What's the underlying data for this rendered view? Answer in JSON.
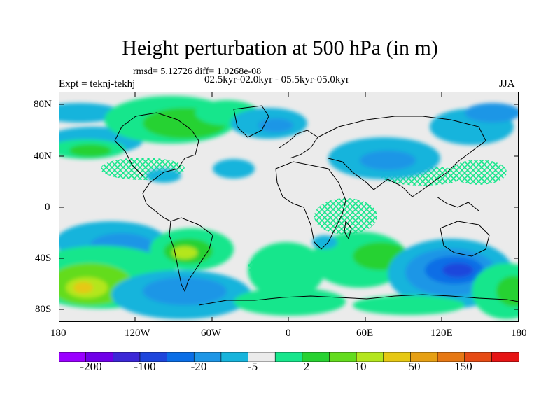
{
  "title": "Height perturbation at 500 hPa (in m)",
  "stats": "rmsd= 5.12726 diff= 1.0268e-08",
  "period": "02.5kyr-02.0kyr - 05.5kyr-05.0kyr",
  "expt": "Expt = teknj-tekhj",
  "season": "JJA",
  "lat_ticks": [
    "80N",
    "40N",
    "0",
    "40S",
    "80S"
  ],
  "lon_ticks": [
    "180",
    "120W",
    "60W",
    "0",
    "60E",
    "120E",
    "180"
  ],
  "colorbar": {
    "labels": [
      "-200",
      "-100",
      "-20",
      "-5",
      "2",
      "10",
      "50",
      "150"
    ],
    "colors": [
      "#9a00ff",
      "#7000e8",
      "#3c28d6",
      "#1e46dc",
      "#0a6ee6",
      "#1e96e6",
      "#17b4dc",
      "#ebebeb",
      "#17e68c",
      "#28d232",
      "#64dc1e",
      "#b4e61e",
      "#e6c814",
      "#e6a014",
      "#e67814",
      "#e64b14",
      "#e61414"
    ]
  },
  "chart_data": {
    "type": "heatmap",
    "title": "Height perturbation at 500 hPa (in m)",
    "x_range": [
      -180,
      180
    ],
    "y_range": [
      -90,
      90
    ],
    "fields": [
      {
        "lon": -80,
        "lat": 57,
        "value": 15
      },
      {
        "lon": -155,
        "lat": 43,
        "value": 10
      },
      {
        "lon": -20,
        "lat": 62,
        "value": -10
      },
      {
        "lon": 60,
        "lat": 57,
        "value": -8
      },
      {
        "lon": 150,
        "lat": 64,
        "value": -6
      },
      {
        "lon": -160,
        "lat": -70,
        "value": 45
      },
      {
        "lon": -120,
        "lat": -40,
        "value": -18
      },
      {
        "lon": -90,
        "lat": -73,
        "value": -25
      },
      {
        "lon": -60,
        "lat": -40,
        "value": 20
      },
      {
        "lon": 15,
        "lat": -50,
        "value": 8
      },
      {
        "lon": 55,
        "lat": -43,
        "value": 12
      },
      {
        "lon": 120,
        "lat": -50,
        "value": -70
      },
      {
        "lon": 175,
        "lat": -75,
        "value": 30
      }
    ]
  }
}
